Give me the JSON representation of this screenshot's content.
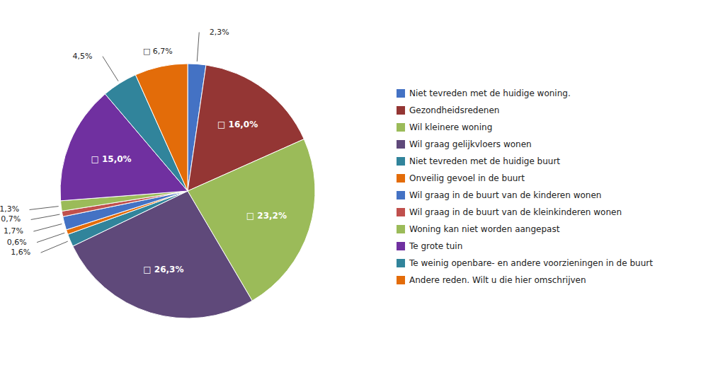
{
  "chart_data": {
    "type": "pie",
    "categories": [
      "Niet tevreden met de huidige woning.",
      "Gezondheidsredenen",
      "Wil kleinere woning",
      "Wil graag gelijkvloers wonen",
      "Niet tevreden met de huidige buurt",
      "Onveilig gevoel in de buurt",
      "Wil graag in de buurt van de kinderen wonen",
      "Wil graag in de buurt van de kleinkinderen wonen",
      "Woning kan niet worden aangepast",
      "Te grote tuin",
      "Te weinig openbare- en andere voorzieningen in de buurt",
      "Andere reden. Wilt u die hier omschrijven"
    ],
    "values": [
      2.3,
      16.0,
      23.2,
      26.3,
      1.6,
      0.6,
      1.7,
      0.7,
      1.3,
      15.0,
      4.5,
      6.7
    ],
    "value_labels": [
      "2,3%",
      "□ 16,0%",
      "□ 23,2%",
      "□ 26,3%",
      "1,6%",
      "0,6%",
      "1,7%",
      "0,7%",
      "1,3%",
      "□ 15,0%",
      "4,5%",
      "□ 6,7%"
    ],
    "colors": [
      "#4472C4",
      "#943634",
      "#9BBB59",
      "#5F497A",
      "#31849B",
      "#E36C09",
      "#4472C4",
      "#C0504D",
      "#9BBB59",
      "#7030A0",
      "#31849B",
      "#E36C09"
    ],
    "data_labels": true,
    "legend": "right"
  }
}
